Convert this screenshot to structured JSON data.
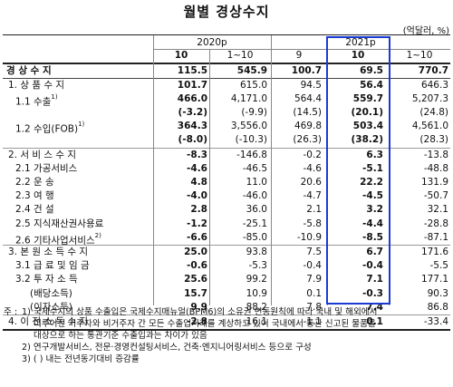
{
  "title": "월별 경상수지",
  "unit": "(억달러, %)",
  "header": {
    "year2020": "2020p",
    "year2021": "2021p",
    "cols": [
      "10",
      "1~10",
      "9",
      "10",
      "1~10"
    ]
  },
  "rows": [
    {
      "label": "경 상 수 지",
      "vals": [
        "115.5",
        "545.9",
        "100.7",
        "69.5",
        "770.7"
      ],
      "bold": true
    },
    {
      "label": "1. 상 품 수 지",
      "vals": [
        "101.7",
        "615.0",
        "94.5",
        "56.4",
        "646.3"
      ]
    },
    {
      "label": "1.1 수출",
      "sup": "1)",
      "vals": [
        "466.0",
        "4,171.0",
        "564.4",
        "559.7",
        "5,207.3"
      ]
    },
    {
      "label": "",
      "vals": [
        "(-3.2)",
        "(-9.9)",
        "(14.5)",
        "(20.1)",
        "(24.8)"
      ]
    },
    {
      "label": "1.2 수입(FOB)",
      "sup": "1)",
      "vals": [
        "364.3",
        "3,556.0",
        "469.8",
        "503.4",
        "4,561.0"
      ]
    },
    {
      "label": "",
      "vals": [
        "(-8.0)",
        "(-10.3)",
        "(26.3)",
        "(38.2)",
        "(28.3)"
      ]
    },
    {
      "label": "2. 서 비 스 수 지",
      "vals": [
        "-8.3",
        "-146.8",
        "-0.2",
        "6.3",
        "-13.8"
      ]
    },
    {
      "label": "2.1 가공서비스",
      "vals": [
        "-4.6",
        "-46.5",
        "-4.6",
        "-5.1",
        "-48.8"
      ]
    },
    {
      "label": "2.2 운 송",
      "vals": [
        "4.8",
        "11.0",
        "20.6",
        "22.2",
        "131.9"
      ]
    },
    {
      "label": "2.3 여 행",
      "vals": [
        "-4.0",
        "-46.0",
        "-4.7",
        "-4.5",
        "-50.7"
      ]
    },
    {
      "label": "2.4 건 설",
      "vals": [
        "2.8",
        "36.0",
        "2.1",
        "3.2",
        "32.1"
      ]
    },
    {
      "label": "2.5 지식재산권사용료",
      "vals": [
        "-1.2",
        "-25.1",
        "-5.8",
        "-4.4",
        "-28.8"
      ]
    },
    {
      "label": "2.6 기타사업서비스",
      "sup": "2)",
      "vals": [
        "-6.6",
        "-85.0",
        "-10.9",
        "-8.5",
        "-87.1"
      ]
    },
    {
      "label": "3. 본 원 소 득 수 지",
      "vals": [
        "25.0",
        "93.8",
        "7.5",
        "6.7",
        "171.6"
      ]
    },
    {
      "label": "3.1 급 료 및 임 금",
      "vals": [
        "-0.6",
        "-5.3",
        "-0.4",
        "-0.4",
        "-5.5"
      ]
    },
    {
      "label": "3.2 투 자 소 득",
      "vals": [
        "25.6",
        "99.2",
        "7.9",
        "7.1",
        "177.1"
      ]
    },
    {
      "label": "(배당소득)",
      "vals": [
        "15.7",
        "10.9",
        "0.1",
        "-0.3",
        "90.3"
      ]
    },
    {
      "label": "(이자소득)",
      "vals": [
        "9.9",
        "88.2",
        "7.8",
        "7.4",
        "86.8"
      ]
    },
    {
      "label": "4. 이 전 소 득 수 지",
      "vals": [
        "-2.8",
        "-16.1",
        "-1.1",
        "0.1",
        "-33.4"
      ]
    }
  ],
  "notes": {
    "prefix": "주 :",
    "n1_mark": "1)",
    "n1_lines": [
      "국제수지의 상품 수출입은 국제수지매뉴얼(BPM6)의 소유권 변동원칙에 따라 국내 및 해외에서",
      "이루어진 거주자와 비거주자 간 모든 수출입거래를 계상하고 있어 국내에서 통관 신고된 물품을",
      "대상으로 하는 통관기준 수출입과는 차이가 있음"
    ],
    "n2": "2) 연구개발서비스, 전문·경영컨설팅서비스, 건축·엔지니어링서비스 등으로 구성",
    "n3": "3) ( ) 내는 전년동기대비 증감률"
  },
  "colors": {
    "highlight_box": "#1a3bd1",
    "header_bg": "#eef1f6"
  }
}
